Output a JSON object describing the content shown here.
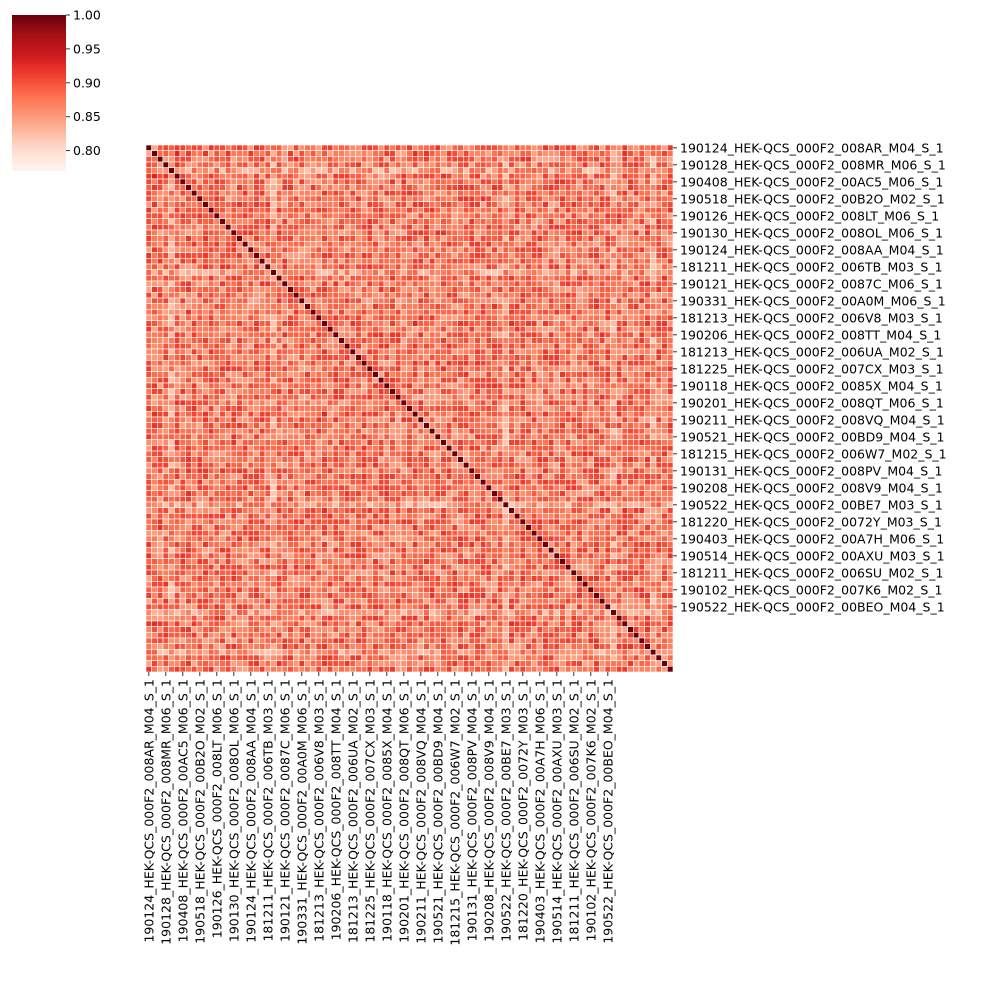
{
  "chart_data": {
    "type": "heatmap",
    "title": "",
    "xlabel": "",
    "ylabel": "",
    "n_rows": 93,
    "n_cols": 93,
    "diagonal_value": 1.0,
    "off_diagonal_range": [
      0.84,
      0.92
    ],
    "value_range": [
      0.77,
      1.0
    ],
    "colormap": "Reds",
    "cell_border_color": "#ffffff",
    "colorbar": {
      "placement": "top-left",
      "min": 0.77,
      "max": 1.0,
      "ticks": [
        0.8,
        0.85,
        0.9,
        0.95,
        1.0
      ],
      "tick_labels": [
        "0.80",
        "0.85",
        "0.90",
        "0.95",
        "1.00"
      ]
    },
    "tick_labels": [
      "190124_HEK-QCS_000F2_008AR_M04_S_1",
      "190128_HEK-QCS_000F2_008MR_M06_S_1",
      "190408_HEK-QCS_000F2_00AC5_M06_S_1",
      "190518_HEK-QCS_000F2_00B2O_M02_S_1",
      "190126_HEK-QCS_000F2_008LT_M06_S_1",
      "190130_HEK-QCS_000F2_008OL_M06_S_1",
      "190124_HEK-QCS_000F2_008AA_M04_S_1",
      "181211_HEK-QCS_000F2_006TB_M03_S_1",
      "190121_HEK-QCS_000F2_0087C_M06_S_1",
      "190331_HEK-QCS_000F2_00A0M_M06_S_1",
      "181213_HEK-QCS_000F2_006V8_M03_S_1",
      "190206_HEK-QCS_000F2_008TT_M04_S_1",
      "181213_HEK-QCS_000F2_006UA_M02_S_1",
      "181225_HEK-QCS_000F2_007CX_M03_S_1",
      "190118_HEK-QCS_000F2_0085X_M04_S_1",
      "190201_HEK-QCS_000F2_008QT_M06_S_1",
      "190211_HEK-QCS_000F2_008VQ_M04_S_1",
      "190521_HEK-QCS_000F2_00BD9_M04_S_1",
      "181215_HEK-QCS_000F2_006W7_M02_S_1",
      "190131_HEK-QCS_000F2_008PV_M04_S_1",
      "190208_HEK-QCS_000F2_008V9_M04_S_1",
      "190522_HEK-QCS_000F2_00BE7_M03_S_1",
      "181220_HEK-QCS_000F2_0072Y_M03_S_1",
      "190403_HEK-QCS_000F2_00A7H_M06_S_1",
      "190514_HEK-QCS_000F2_00AXU_M03_S_1",
      "181211_HEK-QCS_000F2_006SU_M02_S_1",
      "190102_HEK-QCS_000F2_007K6_M02_S_1",
      "190522_HEK-QCS_000F2_00BEO_M04_S_1"
    ],
    "weak_rows": [
      4,
      22,
      63,
      82,
      89
    ],
    "weak_cols": [
      4,
      22,
      63,
      82,
      89
    ],
    "strong_rows": [
      1,
      5,
      31,
      47,
      64,
      67,
      72,
      84
    ],
    "strong_cols": [
      1,
      5,
      31,
      47,
      64,
      67,
      72,
      84
    ]
  }
}
